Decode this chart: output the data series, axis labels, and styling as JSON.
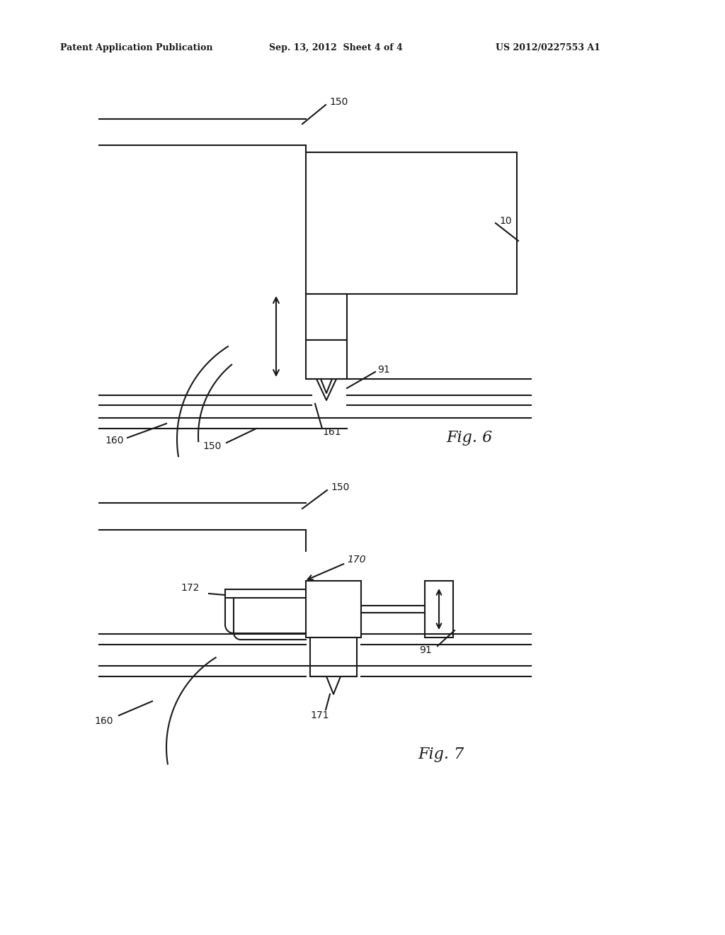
{
  "bg_color": "#ffffff",
  "line_color": "#1a1a1a",
  "text_color": "#1a1a1a",
  "header_left": "Patent Application Publication",
  "header_center": "Sep. 13, 2012  Sheet 4 of 4",
  "header_right": "US 2012/0227553 A1",
  "fig6_label": "Fig. 6",
  "fig7_label": "Fig. 7",
  "lw": 1.5
}
